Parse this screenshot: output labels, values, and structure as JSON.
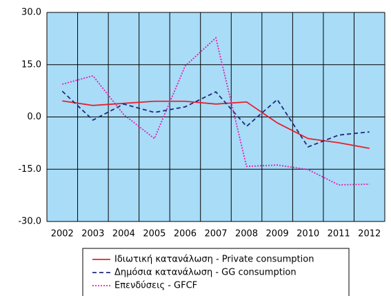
{
  "chart_data": {
    "type": "line",
    "categories": [
      "2002",
      "2003",
      "2004",
      "2005",
      "2006",
      "2007",
      "2008",
      "2009",
      "2010",
      "2011",
      "2012"
    ],
    "series": [
      {
        "name": "Ιδιωτική κατανάλωση - Private consumption",
        "color": "#e8202a",
        "dash": "solid",
        "values": [
          4.6,
          3.3,
          3.9,
          4.5,
          4.5,
          3.7,
          4.3,
          -1.7,
          -6.2,
          -7.4,
          -9.0
        ]
      },
      {
        "name": "Δημόσια κατανάλωση - GG consumption",
        "color": "#1f2a7a",
        "dash": "dashed",
        "values": [
          7.4,
          -0.9,
          3.7,
          1.3,
          2.9,
          7.2,
          -2.7,
          5.0,
          -8.6,
          -5.2,
          -4.3
        ]
      },
      {
        "name": "Επενδύσεις - GFCF",
        "color": "#e020b0",
        "dash": "dotted",
        "values": [
          9.4,
          11.8,
          0.7,
          -6.2,
          14.6,
          22.7,
          -14.2,
          -13.8,
          -15.1,
          -19.5,
          -19.3
        ]
      }
    ],
    "ylim": [
      -30,
      30
    ],
    "yticks": [
      {
        "value": -30,
        "label": "-30.0"
      },
      {
        "value": -15,
        "label": "-15.0"
      },
      {
        "value": 0,
        "label": "0.0"
      },
      {
        "value": 15,
        "label": "15.0"
      },
      {
        "value": 30,
        "label": "30.0"
      }
    ],
    "grid": true,
    "legend": "bottom"
  }
}
